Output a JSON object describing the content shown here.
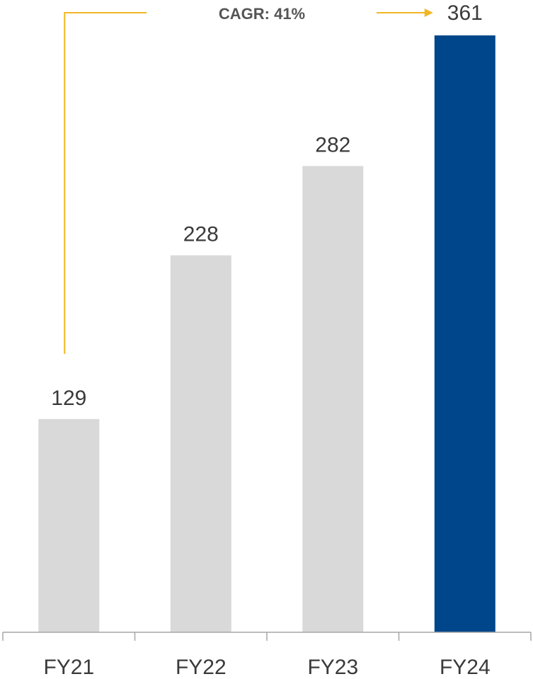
{
  "colors": {
    "bar_default": "#d9d9d9",
    "bar_highlight": "#00468b",
    "annotation_line": "#f2b624",
    "axis": "#a6a6a6",
    "text": "#3a3a3a",
    "annotation_text": "#555555"
  },
  "annotation": {
    "label": "CAGR: 41%",
    "from_category": "FY21",
    "to_category": "FY24",
    "icon": "arrow-right-icon"
  },
  "chart_data": {
    "type": "bar",
    "title": "",
    "xlabel": "",
    "ylabel": "",
    "categories": [
      "FY21",
      "FY22",
      "FY23",
      "FY24"
    ],
    "values": [
      129,
      228,
      282,
      361
    ],
    "value_labels": [
      "129",
      "228",
      "282",
      "361"
    ],
    "highlight_category": "FY24",
    "ylim": [
      0,
      361
    ],
    "grid": false,
    "legend": "none"
  }
}
